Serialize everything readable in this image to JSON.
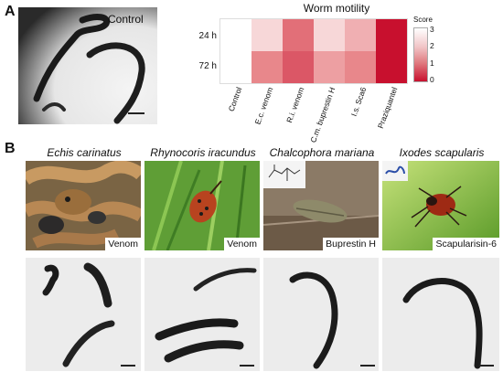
{
  "panelA": {
    "letter": "A",
    "control_label": "Control",
    "heatmap": {
      "title": "Worm motility",
      "rows": [
        "24 h",
        "72 h"
      ],
      "columns": [
        "Control",
        "E.c. venom",
        "R.i. venom",
        "C.m. buprestin H",
        "I.s. Sca6",
        "Praziquantel"
      ],
      "legend_title": "Score",
      "legend_ticks": [
        "3",
        "2",
        "1",
        "0"
      ],
      "colors": {
        "high": "#ffffff",
        "mid": "#e8878b",
        "low": "#c8102e"
      }
    }
  },
  "chart_data": {
    "type": "heatmap",
    "title": "Worm motility",
    "rows": [
      "24 h",
      "72 h"
    ],
    "columns": [
      "Control",
      "E.c. venom",
      "R.i. venom",
      "C.m. buprestin H",
      "I.s. Sca6",
      "Praziquantel"
    ],
    "values": [
      [
        3,
        2.5,
        1.2,
        2.5,
        2.0,
        0
      ],
      [
        3,
        1.5,
        0.9,
        1.8,
        1.5,
        0
      ]
    ],
    "colorbar_label": "Score",
    "range": [
      0,
      3
    ]
  },
  "panelB": {
    "letter": "B",
    "species": [
      {
        "name": "Echis carinatus",
        "label": "Venom"
      },
      {
        "name": "Rhynocoris iracundus",
        "label": "Venom"
      },
      {
        "name": "Chalcophora mariana",
        "label": "Buprestin H"
      },
      {
        "name": "Ixodes scapularis",
        "label": "Scapularisin-6"
      }
    ]
  }
}
